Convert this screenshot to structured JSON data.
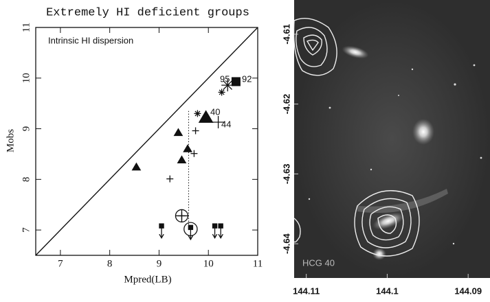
{
  "chart_data": [
    {
      "type": "scatter",
      "title": "Extremely HI deficient groups",
      "x_label": "Mpred(LB)",
      "y_label": "Mobs",
      "xlim": [
        6.5,
        11
      ],
      "ylim": [
        6.5,
        11
      ],
      "xticks": [
        7,
        8,
        9,
        10,
        11
      ],
      "yticks": [
        7,
        8,
        9,
        10,
        11
      ],
      "diagonal": true,
      "color": "#111",
      "reference_lines": [
        {
          "x": 9.6,
          "y": [
            7.0,
            9.35
          ],
          "style": "dotted"
        }
      ],
      "annotations": [
        "Intrinsic HI dispersion",
        "95",
        "92",
        "40",
        "44"
      ],
      "series": [
        {
          "marker": "triangle",
          "size": 6,
          "x": [
            8.54,
            9.39,
            9.58,
            9.46
          ],
          "y": [
            8.24,
            8.92,
            8.6,
            8.38
          ]
        },
        {
          "marker": "triangle",
          "size": 10,
          "x": [
            9.95
          ],
          "y": [
            9.22
          ]
        },
        {
          "marker": "plus",
          "size": 5,
          "x": [
            9.22,
            9.71,
            9.74
          ],
          "y": [
            8.01,
            8.51,
            8.96
          ]
        },
        {
          "marker": "plus",
          "size": 9,
          "x": [
            10.2
          ],
          "y": [
            9.13
          ]
        },
        {
          "marker": "asterisk",
          "size": 5,
          "x": [
            9.78,
            10.27
          ],
          "y": [
            9.3,
            9.72
          ]
        },
        {
          "marker": "asterisk",
          "size": 9,
          "x": [
            10.39
          ],
          "y": [
            9.86
          ]
        },
        {
          "marker": "square",
          "size": 6,
          "x": [
            10.56
          ],
          "y": [
            9.93
          ]
        },
        {
          "marker": "circled-plus",
          "size": 9,
          "x": [
            9.46
          ],
          "y": [
            7.28
          ]
        },
        {
          "marker": "upper-limit",
          "size": 4,
          "x": [
            9.05,
            10.13,
            10.25
          ],
          "y": [
            7.07,
            7.07,
            7.07
          ]
        },
        {
          "marker": "upper-limit-circled",
          "size": 4,
          "x": [
            9.64
          ],
          "y": [
            7.04
          ]
        }
      ]
    },
    {
      "type": "image",
      "label": "HCG 40",
      "xlim": [
        144.1115,
        144.0873
      ],
      "ylim": [
        -4.6449,
        -4.6051
      ],
      "xticks": [
        144.11,
        144.1,
        144.09
      ],
      "yticks": [
        -4.61,
        -4.62,
        -4.63,
        -4.64
      ]
    }
  ]
}
